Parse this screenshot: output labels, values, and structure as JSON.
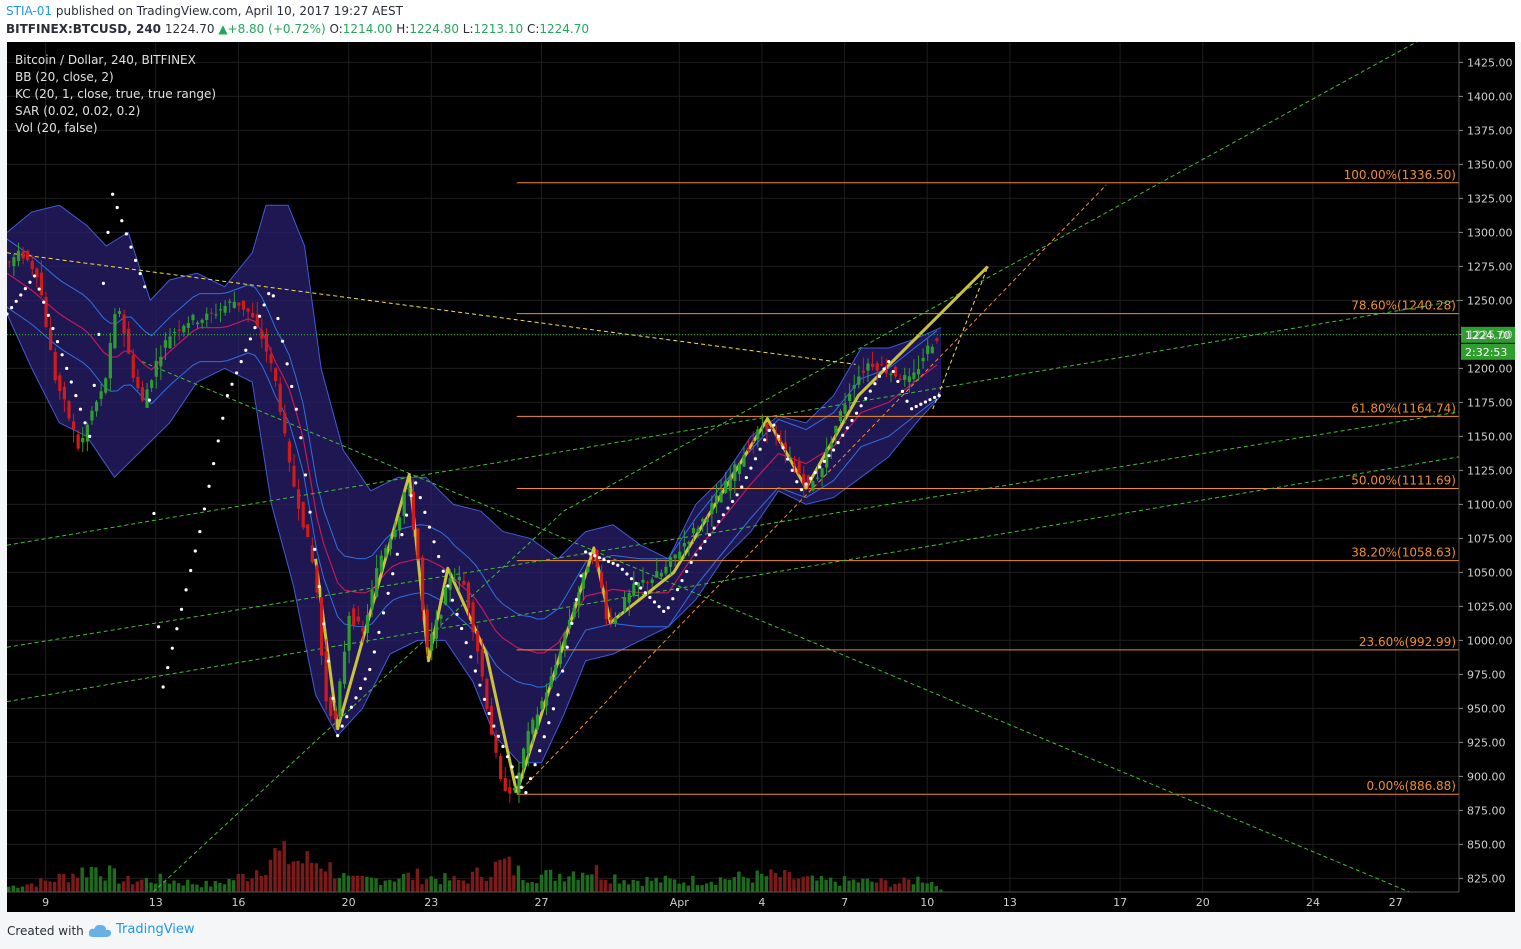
{
  "header": {
    "author": "STIA-01",
    "published": "published on TradingView.com, April 10, 2017 19:27 AEST",
    "symbol": "BITFINEX:BTCUSD, 240",
    "last": "1224.70",
    "change": "+8.80 (+0.72%)",
    "o_label": "O:",
    "o": "1214.00",
    "h_label": "H:",
    "h": "1224.80",
    "l_label": "L:",
    "l": "1213.10",
    "c_label": "C:",
    "c": "1224.70"
  },
  "legend": [
    "Bitcoin / Dollar, 240, BITFINEX",
    "BB (20, close, 2)",
    "KC (20, 1, close, true, true range)",
    "SAR (0.02, 0.02, 0.2)",
    "Vol (20, false)"
  ],
  "footer": {
    "created": "Created with",
    "brand": "TradingView",
    "logo_icon": "cloud-icon"
  },
  "colors": {
    "background": "#000000",
    "bull": "#2e9e2e",
    "bear": "#d11a1a",
    "bb_fill": "#2a1f6e",
    "bb_line": "#3f5bd6",
    "fib": "#f08d28",
    "trend_green": "#3fbf2f",
    "trend_yellow": "#f2df3a",
    "pattern": "#c9c23a",
    "sar": "#ffffff",
    "price_line": "#26c026"
  },
  "chart_data": {
    "type": "candlestick",
    "title": "Bitcoin / Dollar, 240, BITFINEX",
    "ylim": [
      815,
      1440
    ],
    "y_ticks": [
      825,
      850,
      875,
      900,
      925,
      950,
      975,
      1000,
      1025,
      1050,
      1075,
      1100,
      1125,
      1150,
      1175,
      1200,
      1225,
      1250,
      1275,
      1300,
      1325,
      1350,
      1375,
      1400,
      1425
    ],
    "x_tick_labels": [
      "9",
      "13",
      "16",
      "20",
      "23",
      "27",
      "Apr",
      "4",
      "7",
      "10",
      "13",
      "17",
      "20",
      "24",
      "27"
    ],
    "x_tick_days": [
      9,
      13,
      16,
      20,
      23,
      27,
      32,
      35,
      38,
      41,
      44,
      48,
      51,
      55,
      58
    ],
    "x_range_days": [
      7.6,
      60.3
    ],
    "last_price": "1224.70",
    "last_price_value": 1224.7,
    "countdown": "2:32:53",
    "fib_levels": [
      {
        "label": "100.00%(1336.50)",
        "value": 1336.5
      },
      {
        "label": "78.60%(1240.28)",
        "value": 1240.28
      },
      {
        "label": "61.80%(1164.74)",
        "value": 1164.74
      },
      {
        "label": "50.00%(1111.69)",
        "value": 1111.69
      },
      {
        "label": "38.20%(1058.63)",
        "value": 1058.63
      },
      {
        "label": "23.60%(992.99)",
        "value": 992.99
      },
      {
        "label": "0.00%(886.88)",
        "value": 886.88
      }
    ],
    "fib_start_day": 26.1,
    "price_path": [
      [
        7.6,
        1275
      ],
      [
        8.2,
        1285
      ],
      [
        8.8,
        1270
      ],
      [
        9.4,
        1195
      ],
      [
        10,
        1160
      ],
      [
        10.3,
        1140
      ],
      [
        10.8,
        1170
      ],
      [
        11.2,
        1185
      ],
      [
        11.7,
        1250
      ],
      [
        12.2,
        1200
      ],
      [
        12.6,
        1175
      ],
      [
        13.2,
        1210
      ],
      [
        13.6,
        1225
      ],
      [
        14.2,
        1235
      ],
      [
        15,
        1238
      ],
      [
        15.5,
        1245
      ],
      [
        16,
        1250
      ],
      [
        16.5,
        1240
      ],
      [
        17,
        1220
      ],
      [
        17.5,
        1185
      ],
      [
        17.9,
        1130
      ],
      [
        18.4,
        1090
      ],
      [
        18.9,
        1045
      ],
      [
        19.2,
        960
      ],
      [
        19.6,
        940
      ],
      [
        20.1,
        1020
      ],
      [
        20.6,
        1005
      ],
      [
        21.2,
        1060
      ],
      [
        21.9,
        1090
      ],
      [
        22.2,
        1118
      ],
      [
        22.6,
        1060
      ],
      [
        22.9,
        990
      ],
      [
        23.4,
        1020
      ],
      [
        23.8,
        1050
      ],
      [
        24.3,
        1040
      ],
      [
        24.8,
        990
      ],
      [
        25.2,
        940
      ],
      [
        25.6,
        895
      ],
      [
        26.1,
        888
      ],
      [
        26.5,
        925
      ],
      [
        27,
        950
      ],
      [
        27.5,
        975
      ],
      [
        28,
        1010
      ],
      [
        28.5,
        1040
      ],
      [
        28.9,
        1065
      ],
      [
        29.2,
        1045
      ],
      [
        29.5,
        1012
      ],
      [
        30,
        1025
      ],
      [
        30.5,
        1040
      ],
      [
        31,
        1045
      ],
      [
        31.5,
        1050
      ],
      [
        32.2,
        1070
      ],
      [
        33,
        1090
      ],
      [
        33.8,
        1115
      ],
      [
        34.5,
        1140
      ],
      [
        35.2,
        1160
      ],
      [
        35.7,
        1145
      ],
      [
        36.2,
        1130
      ],
      [
        36.8,
        1112
      ],
      [
        37.2,
        1125
      ],
      [
        37.8,
        1160
      ],
      [
        38.4,
        1190
      ],
      [
        39,
        1205
      ],
      [
        39.5,
        1200
      ],
      [
        40,
        1195
      ],
      [
        40.5,
        1190
      ],
      [
        41,
        1212
      ],
      [
        41.5,
        1225
      ]
    ],
    "bb_upper_path": [
      [
        7.6,
        1300
      ],
      [
        8.5,
        1315
      ],
      [
        9.5,
        1320
      ],
      [
        10.5,
        1305
      ],
      [
        11.2,
        1290
      ],
      [
        12,
        1300
      ],
      [
        12.8,
        1250
      ],
      [
        13.5,
        1265
      ],
      [
        14.5,
        1270
      ],
      [
        15.5,
        1260
      ],
      [
        16.5,
        1285
      ],
      [
        17,
        1320
      ],
      [
        17.8,
        1320
      ],
      [
        18.4,
        1290
      ],
      [
        19,
        1200
      ],
      [
        19.8,
        1140
      ],
      [
        20.8,
        1110
      ],
      [
        21.8,
        1120
      ],
      [
        22.8,
        1120
      ],
      [
        23.8,
        1100
      ],
      [
        24.8,
        1095
      ],
      [
        25.6,
        1080
      ],
      [
        26.6,
        1075
      ],
      [
        27.6,
        1060
      ],
      [
        28.6,
        1080
      ],
      [
        29.6,
        1085
      ],
      [
        30.6,
        1070
      ],
      [
        31.6,
        1060
      ],
      [
        32.6,
        1100
      ],
      [
        33.6,
        1120
      ],
      [
        34.6,
        1150
      ],
      [
        35.6,
        1165
      ],
      [
        36.6,
        1160
      ],
      [
        37.6,
        1180
      ],
      [
        38.6,
        1215
      ],
      [
        39.6,
        1215
      ],
      [
        40.6,
        1222
      ],
      [
        41.5,
        1230
      ]
    ],
    "bb_lower_path": [
      [
        7.6,
        1240
      ],
      [
        8.5,
        1200
      ],
      [
        9.5,
        1160
      ],
      [
        10.5,
        1150
      ],
      [
        11.5,
        1120
      ],
      [
        12.5,
        1140
      ],
      [
        13.5,
        1160
      ],
      [
        14.5,
        1190
      ],
      [
        15.5,
        1200
      ],
      [
        16.5,
        1190
      ],
      [
        17.2,
        1100
      ],
      [
        18,
        1040
      ],
      [
        18.8,
        960
      ],
      [
        19.6,
        930
      ],
      [
        20.5,
        950
      ],
      [
        21.5,
        990
      ],
      [
        22.5,
        1000
      ],
      [
        23.5,
        1000
      ],
      [
        24.5,
        970
      ],
      [
        25.3,
        930
      ],
      [
        26.2,
        910
      ],
      [
        27,
        910
      ],
      [
        27.8,
        945
      ],
      [
        28.6,
        985
      ],
      [
        29.6,
        990
      ],
      [
        30.6,
        1000
      ],
      [
        31.6,
        1010
      ],
      [
        32.6,
        1030
      ],
      [
        33.6,
        1060
      ],
      [
        34.6,
        1080
      ],
      [
        35.6,
        1110
      ],
      [
        36.6,
        1100
      ],
      [
        37.6,
        1105
      ],
      [
        38.6,
        1120
      ],
      [
        39.6,
        1135
      ],
      [
        40.6,
        1160
      ],
      [
        41.5,
        1180
      ]
    ],
    "sar_points": [
      [
        7.6,
        1240
      ],
      [
        8.6,
        1268
      ],
      [
        9.6,
        1210
      ],
      [
        10.6,
        1150
      ],
      [
        11.4,
        1330
      ],
      [
        12.6,
        1260
      ],
      [
        13.2,
        960
      ],
      [
        14.6,
        1080
      ],
      [
        15.6,
        1180
      ],
      [
        17.2,
        1260
      ],
      [
        18.2,
        1160
      ],
      [
        19.6,
        930
      ],
      [
        20.8,
        980
      ],
      [
        22.4,
        1118
      ],
      [
        23.6,
        1040
      ],
      [
        25.2,
        940
      ],
      [
        26.4,
        886
      ],
      [
        27.6,
        960
      ],
      [
        28.6,
        1065
      ],
      [
        29.8,
        1055
      ],
      [
        31.5,
        1020
      ],
      [
        32.5,
        1060
      ],
      [
        34.2,
        1110
      ],
      [
        35.4,
        1160
      ],
      [
        36.4,
        1110
      ],
      [
        37.6,
        1140
      ],
      [
        39.6,
        1205
      ],
      [
        40.4,
        1170
      ],
      [
        41.4,
        1180
      ]
    ],
    "volume_envelope": [
      [
        7.6,
        6
      ],
      [
        9,
        12
      ],
      [
        10.8,
        28
      ],
      [
        11.8,
        12
      ],
      [
        13,
        14
      ],
      [
        15,
        8
      ],
      [
        16.4,
        20
      ],
      [
        17.2,
        42
      ],
      [
        18.2,
        34
      ],
      [
        19,
        34
      ],
      [
        19.2,
        28
      ],
      [
        20,
        12
      ],
      [
        21.5,
        16
      ],
      [
        22.4,
        18
      ],
      [
        24,
        12
      ],
      [
        25.6,
        32
      ],
      [
        26.2,
        20
      ],
      [
        27.2,
        18
      ],
      [
        28.6,
        26
      ],
      [
        30,
        14
      ],
      [
        32,
        12
      ],
      [
        34,
        16
      ],
      [
        35.4,
        18
      ],
      [
        37,
        12
      ],
      [
        38.4,
        12
      ],
      [
        40,
        10
      ],
      [
        40.8,
        16
      ],
      [
        41.5,
        4
      ]
    ],
    "trend_lines": [
      {
        "color": "#3fbf2f",
        "dashed": true,
        "points": [
          [
            12.9,
            815
          ],
          [
            27.8,
            1095
          ],
          [
            59.2,
            1445
          ]
        ]
      },
      {
        "color": "#3fbf2f",
        "dashed": true,
        "points": [
          [
            7.6,
            955
          ],
          [
            60.3,
            1135
          ]
        ]
      },
      {
        "color": "#3fbf2f",
        "dashed": true,
        "points": [
          [
            7.6,
            995
          ],
          [
            60.3,
            1168
          ]
        ]
      },
      {
        "color": "#3fbf2f",
        "dashed": true,
        "points": [
          [
            7.6,
            1070
          ],
          [
            60.3,
            1250
          ]
        ]
      },
      {
        "color": "#3fbf2f",
        "dashed": true,
        "points": [
          [
            12.5,
            1205
          ],
          [
            58.5,
            815
          ]
        ]
      },
      {
        "color": "#f2df3a",
        "dashed": true,
        "points": [
          [
            7.6,
            1285
          ],
          [
            38.4,
            1203
          ]
        ]
      },
      {
        "color": "#f08d28",
        "dashed": true,
        "points": [
          [
            26.1,
            886.88
          ],
          [
            47.5,
            1335
          ]
        ]
      },
      {
        "color": "#f2df3a",
        "dashed": true,
        "points": [
          [
            41.2,
            1170
          ],
          [
            43.2,
            1275
          ]
        ]
      }
    ],
    "pattern_lines": [
      {
        "color": "#c9c23a",
        "points": [
          [
            18.8,
            1060
          ],
          [
            19.6,
            935
          ],
          [
            21.2,
            1050
          ],
          [
            22.2,
            1122
          ],
          [
            22.9,
            985
          ],
          [
            23.6,
            1053
          ],
          [
            25,
            990
          ],
          [
            26.1,
            888
          ]
        ]
      },
      {
        "color": "#c9c23a",
        "points": [
          [
            26.1,
            888
          ],
          [
            28.9,
            1068
          ],
          [
            29.5,
            1013
          ],
          [
            31.8,
            1050
          ],
          [
            35.2,
            1163
          ],
          [
            36.6,
            1112
          ],
          [
            38.5,
            1180
          ],
          [
            43.2,
            1275
          ]
        ]
      }
    ],
    "hline_color": "#f08d28"
  }
}
